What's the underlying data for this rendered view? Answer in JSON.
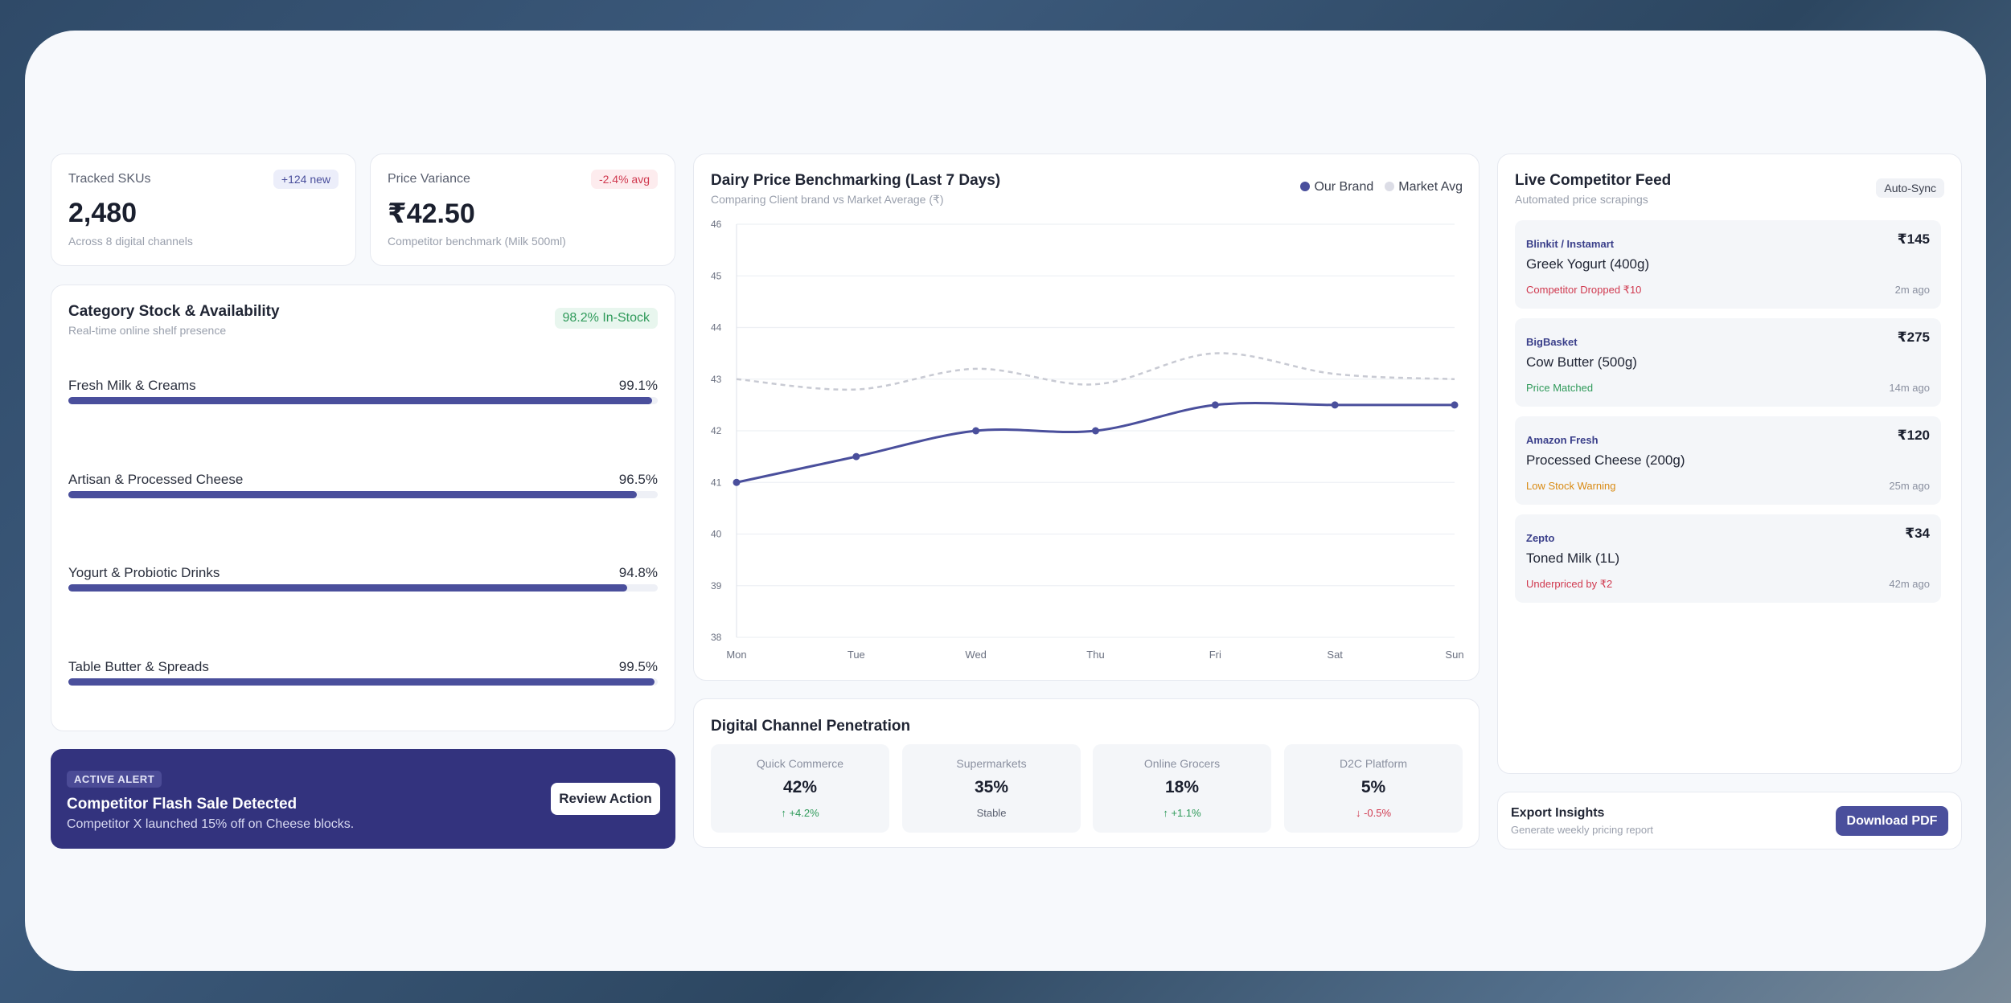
{
  "stats": {
    "tracked": {
      "label": "Tracked SKUs",
      "badge": "+124 new",
      "value": "2,480",
      "sub": "Across 8 digital channels"
    },
    "variance": {
      "label": "Price Variance",
      "badge": "-2.4% avg",
      "value": "₹42.50",
      "sub": "Competitor benchmark (Milk 500ml)"
    }
  },
  "category": {
    "title": "Category Stock & Availability",
    "subtitle": "Real-time online shelf presence",
    "badge": "98.2% In-Stock",
    "items": [
      {
        "label": "Fresh Milk & Creams",
        "value": "99.1%",
        "fraction": 0.991
      },
      {
        "label": "Artisan & Processed Cheese",
        "value": "96.5%",
        "fraction": 0.965
      },
      {
        "label": "Yogurt & Probiotic Drinks",
        "value": "94.8%",
        "fraction": 0.948
      },
      {
        "label": "Table Butter & Spreads",
        "value": "99.5%",
        "fraction": 0.995
      }
    ]
  },
  "alert": {
    "tag": "ACTIVE ALERT",
    "title": "Competitor Flash Sale Detected",
    "message": "Competitor X launched 15% off on Cheese blocks.",
    "button": "Review Action"
  },
  "chart_data": {
    "type": "line",
    "title": "Dairy Price Benchmarking (Last 7 Days)",
    "subtitle": "Comparing Client brand vs Market Average (₹)",
    "categories": [
      "Mon",
      "Tue",
      "Wed",
      "Thu",
      "Fri",
      "Sat",
      "Sun"
    ],
    "yticks": [
      "46",
      "45",
      "44",
      "43",
      "42",
      "41",
      "40",
      "39",
      "38"
    ],
    "ylim": [
      38,
      46
    ],
    "series": [
      {
        "name": "Our Brand",
        "values": [
          41,
          41.5,
          42,
          42,
          42.5,
          42.5,
          42.5
        ],
        "color": "#4a4f9c"
      },
      {
        "name": "Market Avg",
        "values": [
          43,
          42.8,
          43.2,
          42.9,
          43.5,
          43.1,
          43
        ],
        "color": "#c8cad3"
      }
    ],
    "legend": "top-right",
    "grid": true
  },
  "channels": {
    "title": "Digital Channel Penetration",
    "items": [
      {
        "name": "Quick Commerce",
        "value": "42%",
        "delta": "↑ +4.2%",
        "trend": "up"
      },
      {
        "name": "Supermarkets",
        "value": "35%",
        "delta": "Stable",
        "trend": "flat"
      },
      {
        "name": "Online Grocers",
        "value": "18%",
        "delta": "↑ +1.1%",
        "trend": "up"
      },
      {
        "name": "D2C Platform",
        "value": "5%",
        "delta": "↓ -0.5%",
        "trend": "down"
      }
    ]
  },
  "feed": {
    "title": "Live Competitor Feed",
    "subtitle": "Automated price scrapings",
    "badge": "Auto-Sync",
    "items": [
      {
        "source": "Blinkit / Instamart",
        "product": "Greek Yogurt (400g)",
        "status": "Competitor Dropped ₹10",
        "status_color": "#d0394f",
        "price": "₹145",
        "time": "2m ago"
      },
      {
        "source": "BigBasket",
        "product": "Cow Butter (500g)",
        "status": "Price Matched",
        "status_color": "#2f9a5a",
        "price": "₹275",
        "time": "14m ago"
      },
      {
        "source": "Amazon Fresh",
        "product": "Processed Cheese (200g)",
        "status": "Low Stock Warning",
        "status_color": "#d98a12",
        "price": "₹120",
        "time": "25m ago"
      },
      {
        "source": "Zepto",
        "product": "Toned Milk (1L)",
        "status": "Underpriced by ₹2",
        "status_color": "#d0394f",
        "price": "₹34",
        "time": "42m ago"
      }
    ]
  },
  "export": {
    "title": "Export Insights",
    "subtitle": "Generate weekly pricing report",
    "button": "Download PDF"
  }
}
